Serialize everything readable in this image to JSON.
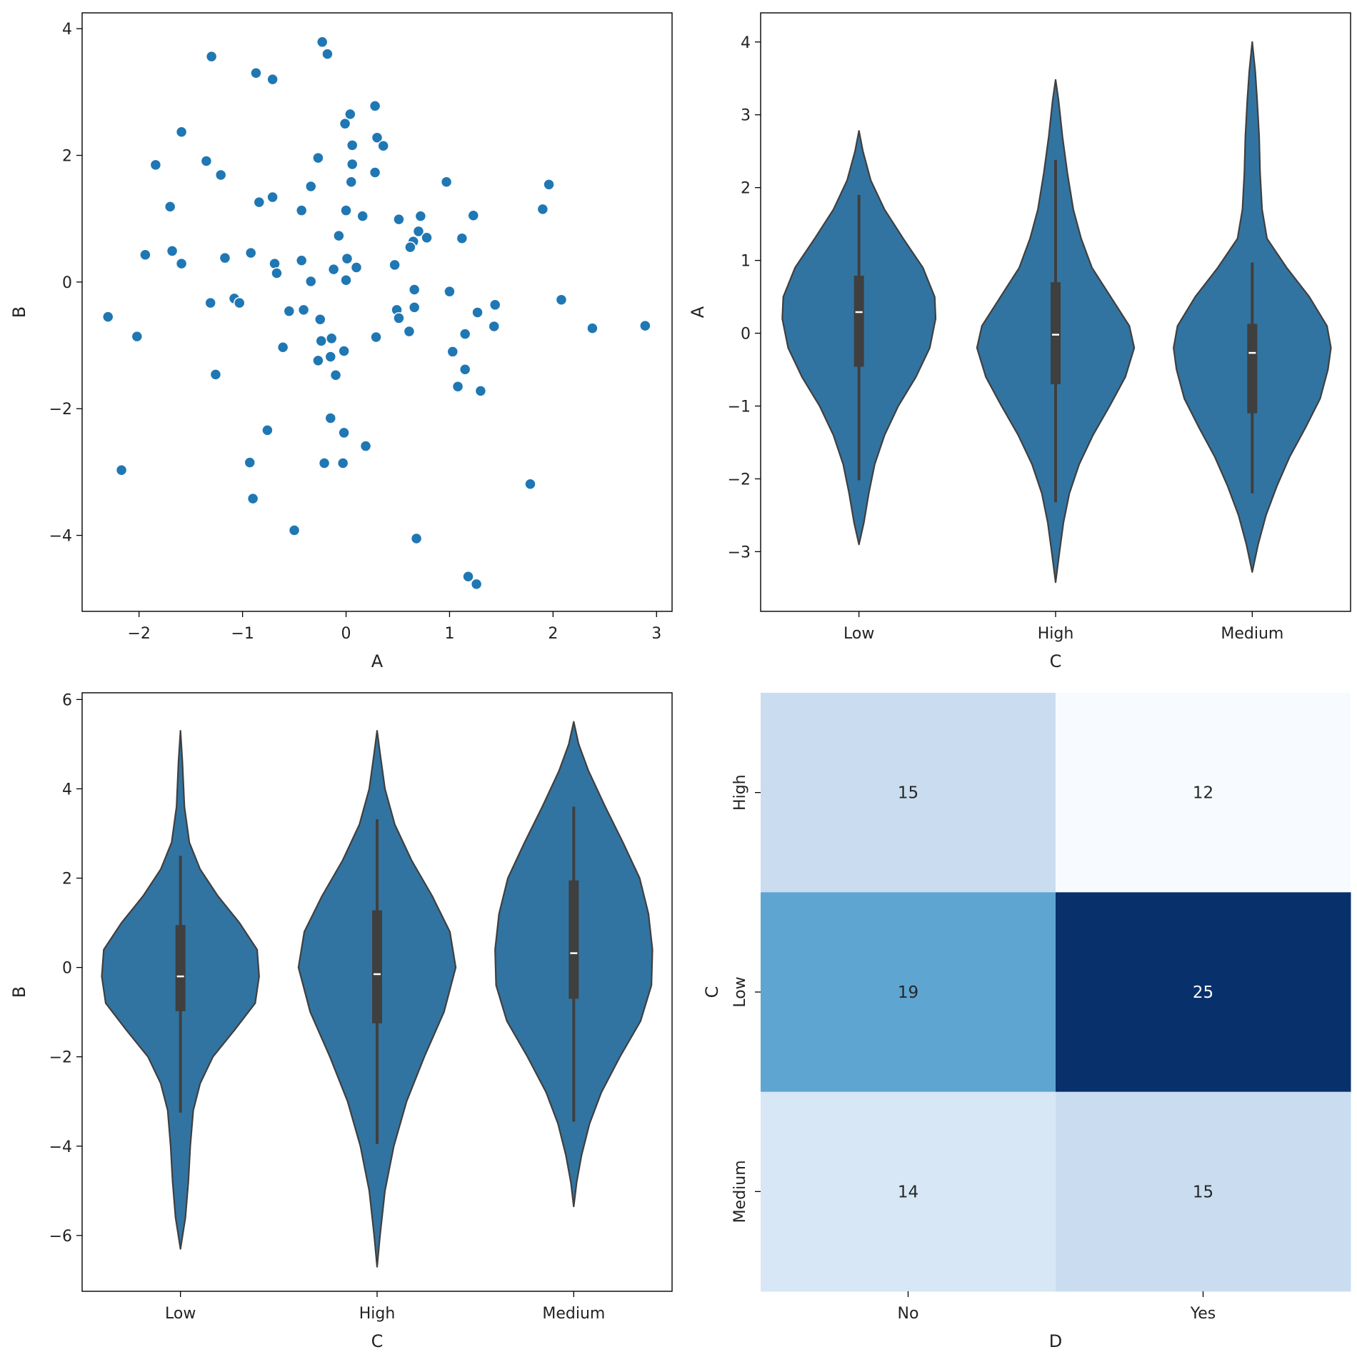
{
  "chart_data": [
    {
      "type": "scatter",
      "xlabel": "A",
      "ylabel": "B",
      "xlim": [
        -2.55,
        3.15
      ],
      "ylim": [
        -5.2,
        4.25
      ],
      "xticks": [
        "−2",
        "−1",
        "0",
        "1",
        "2",
        "3"
      ],
      "yticks": [
        "−4",
        "−2",
        "0",
        "2",
        "4"
      ],
      "color": "#1f77b4",
      "points": [
        [
          -0.23,
          3.79
        ],
        [
          -0.18,
          3.6
        ],
        [
          -1.3,
          3.56
        ],
        [
          -0.87,
          3.3
        ],
        [
          -0.71,
          3.2
        ],
        [
          0.28,
          2.78
        ],
        [
          0.04,
          2.65
        ],
        [
          -0.01,
          2.5
        ],
        [
          -1.59,
          2.37
        ],
        [
          0.3,
          2.28
        ],
        [
          0.06,
          2.16
        ],
        [
          0.36,
          2.15
        ],
        [
          -0.27,
          1.96
        ],
        [
          -1.35,
          1.91
        ],
        [
          -1.84,
          1.85
        ],
        [
          0.06,
          1.86
        ],
        [
          -1.21,
          1.69
        ],
        [
          0.28,
          1.73
        ],
        [
          0.97,
          1.58
        ],
        [
          0.05,
          1.58
        ],
        [
          1.96,
          1.54
        ],
        [
          -0.34,
          1.51
        ],
        [
          -0.71,
          1.34
        ],
        [
          -0.84,
          1.26
        ],
        [
          -1.7,
          1.19
        ],
        [
          1.9,
          1.15
        ],
        [
          -0.43,
          1.13
        ],
        [
          0.0,
          1.13
        ],
        [
          0.72,
          1.04
        ],
        [
          0.16,
          1.04
        ],
        [
          1.23,
          1.05
        ],
        [
          0.51,
          0.99
        ],
        [
          0.7,
          0.8
        ],
        [
          -0.07,
          0.73
        ],
        [
          0.78,
          0.7
        ],
        [
          1.12,
          0.69
        ],
        [
          0.65,
          0.64
        ],
        [
          0.62,
          0.55
        ],
        [
          -1.68,
          0.49
        ],
        [
          -0.92,
          0.46
        ],
        [
          -1.94,
          0.43
        ],
        [
          -1.17,
          0.38
        ],
        [
          0.01,
          0.37
        ],
        [
          -0.43,
          0.34
        ],
        [
          -0.69,
          0.29
        ],
        [
          -1.59,
          0.29
        ],
        [
          0.47,
          0.27
        ],
        [
          0.1,
          0.23
        ],
        [
          -0.12,
          0.2
        ],
        [
          -0.67,
          0.14
        ],
        [
          0.0,
          0.03
        ],
        [
          -0.34,
          0.01
        ],
        [
          0.66,
          -0.12
        ],
        [
          1.0,
          -0.15
        ],
        [
          2.08,
          -0.28
        ],
        [
          -1.08,
          -0.26
        ],
        [
          -1.03,
          -0.33
        ],
        [
          -1.31,
          -0.33
        ],
        [
          1.44,
          -0.36
        ],
        [
          0.66,
          -0.4
        ],
        [
          -0.41,
          -0.44
        ],
        [
          0.49,
          -0.44
        ],
        [
          -0.55,
          -0.46
        ],
        [
          1.27,
          -0.48
        ],
        [
          -2.3,
          -0.55
        ],
        [
          0.51,
          -0.57
        ],
        [
          -0.25,
          -0.59
        ],
        [
          2.89,
          -0.69
        ],
        [
          1.43,
          -0.7
        ],
        [
          2.38,
          -0.73
        ],
        [
          0.61,
          -0.78
        ],
        [
          1.15,
          -0.82
        ],
        [
          -2.02,
          -0.86
        ],
        [
          -0.14,
          -0.89
        ],
        [
          -0.24,
          -0.93
        ],
        [
          0.29,
          -0.87
        ],
        [
          -0.61,
          -1.03
        ],
        [
          -0.02,
          -1.09
        ],
        [
          1.03,
          -1.1
        ],
        [
          -0.15,
          -1.18
        ],
        [
          -0.27,
          -1.24
        ],
        [
          1.15,
          -1.38
        ],
        [
          -1.26,
          -1.46
        ],
        [
          -0.1,
          -1.47
        ],
        [
          1.08,
          -1.65
        ],
        [
          1.3,
          -1.72
        ],
        [
          -0.15,
          -2.15
        ],
        [
          -0.76,
          -2.34
        ],
        [
          -0.02,
          -2.38
        ],
        [
          0.19,
          -2.59
        ],
        [
          -0.93,
          -2.85
        ],
        [
          -0.21,
          -2.86
        ],
        [
          -0.03,
          -2.86
        ],
        [
          -2.17,
          -2.97
        ],
        [
          1.78,
          -3.19
        ],
        [
          -0.9,
          -3.42
        ],
        [
          -0.5,
          -3.92
        ],
        [
          0.68,
          -4.05
        ],
        [
          1.18,
          -4.65
        ],
        [
          1.26,
          -4.77
        ]
      ]
    },
    {
      "type": "violin",
      "xlabel": "C",
      "ylabel": "A",
      "ylim": [
        -3.82,
        4.4
      ],
      "yticks": [
        "−3",
        "−2",
        "−1",
        "0",
        "1",
        "2",
        "3",
        "4"
      ],
      "categories": [
        "Low",
        "High",
        "Medium"
      ],
      "color": "#3274a1",
      "violins": [
        {
          "category": "Low",
          "profile": [
            [
              -2.9,
              0.0
            ],
            [
              -2.6,
              0.05
            ],
            [
              -2.2,
              0.1
            ],
            [
              -1.8,
              0.16
            ],
            [
              -1.4,
              0.26
            ],
            [
              -1.0,
              0.4
            ],
            [
              -0.6,
              0.58
            ],
            [
              -0.2,
              0.72
            ],
            [
              0.2,
              0.78
            ],
            [
              0.5,
              0.77
            ],
            [
              0.9,
              0.65
            ],
            [
              1.3,
              0.45
            ],
            [
              1.7,
              0.26
            ],
            [
              2.1,
              0.12
            ],
            [
              2.5,
              0.04
            ],
            [
              2.78,
              0.0
            ]
          ],
          "median": 0.29,
          "q1": -0.46,
          "q3": 0.79,
          "whisker_low": -2.02,
          "whisker_high": 1.9
        },
        {
          "category": "High",
          "profile": [
            [
              -3.42,
              0.0
            ],
            [
              -3.0,
              0.04
            ],
            [
              -2.6,
              0.08
            ],
            [
              -2.2,
              0.14
            ],
            [
              -1.8,
              0.24
            ],
            [
              -1.4,
              0.38
            ],
            [
              -1.0,
              0.55
            ],
            [
              -0.6,
              0.71
            ],
            [
              -0.2,
              0.8
            ],
            [
              0.1,
              0.75
            ],
            [
              0.5,
              0.56
            ],
            [
              0.9,
              0.37
            ],
            [
              1.3,
              0.26
            ],
            [
              1.7,
              0.18
            ],
            [
              2.2,
              0.12
            ],
            [
              2.7,
              0.07
            ],
            [
              3.2,
              0.03
            ],
            [
              3.48,
              0.0
            ]
          ],
          "median": -0.02,
          "q1": -0.7,
          "q3": 0.7,
          "whisker_low": -2.32,
          "whisker_high": 2.38
        },
        {
          "category": "Medium",
          "profile": [
            [
              -3.28,
              0.0
            ],
            [
              -2.9,
              0.06
            ],
            [
              -2.5,
              0.14
            ],
            [
              -2.1,
              0.25
            ],
            [
              -1.7,
              0.38
            ],
            [
              -1.3,
              0.54
            ],
            [
              -0.9,
              0.69
            ],
            [
              -0.5,
              0.77
            ],
            [
              -0.2,
              0.8
            ],
            [
              0.1,
              0.76
            ],
            [
              0.5,
              0.58
            ],
            [
              0.9,
              0.35
            ],
            [
              1.3,
              0.15
            ],
            [
              1.7,
              0.1
            ],
            [
              2.2,
              0.08
            ],
            [
              2.7,
              0.07
            ],
            [
              3.2,
              0.05
            ],
            [
              3.6,
              0.03
            ],
            [
              4.0,
              0.0
            ]
          ],
          "median": -0.27,
          "q1": -1.1,
          "q3": 0.13,
          "whisker_low": -2.2,
          "whisker_high": 0.97
        }
      ]
    },
    {
      "type": "violin",
      "xlabel": "C",
      "ylabel": "B",
      "ylim": [
        -7.25,
        6.15
      ],
      "yticks": [
        "−6",
        "−4",
        "−2",
        "0",
        "2",
        "4",
        "6"
      ],
      "categories": [
        "Low",
        "High",
        "Medium"
      ],
      "color": "#3274a1",
      "violins": [
        {
          "category": "Low",
          "profile": [
            [
              -6.3,
              0.0
            ],
            [
              -5.6,
              0.05
            ],
            [
              -4.8,
              0.08
            ],
            [
              -4.0,
              0.1
            ],
            [
              -3.2,
              0.13
            ],
            [
              -2.6,
              0.2
            ],
            [
              -2.0,
              0.33
            ],
            [
              -1.4,
              0.55
            ],
            [
              -0.8,
              0.76
            ],
            [
              -0.2,
              0.8
            ],
            [
              0.4,
              0.78
            ],
            [
              1.0,
              0.6
            ],
            [
              1.6,
              0.38
            ],
            [
              2.2,
              0.2
            ],
            [
              2.8,
              0.09
            ],
            [
              3.6,
              0.04
            ],
            [
              4.6,
              0.02
            ],
            [
              5.3,
              0.0
            ]
          ],
          "median": -0.2,
          "q1": -0.98,
          "q3": 0.95,
          "whisker_low": -3.25,
          "whisker_high": 2.5
        },
        {
          "category": "High",
          "profile": [
            [
              -6.7,
              0.0
            ],
            [
              -6.0,
              0.03
            ],
            [
              -5.0,
              0.08
            ],
            [
              -4.0,
              0.17
            ],
            [
              -3.0,
              0.3
            ],
            [
              -2.0,
              0.48
            ],
            [
              -1.0,
              0.68
            ],
            [
              0.0,
              0.8
            ],
            [
              0.8,
              0.74
            ],
            [
              1.6,
              0.56
            ],
            [
              2.4,
              0.35
            ],
            [
              3.2,
              0.18
            ],
            [
              4.0,
              0.08
            ],
            [
              4.8,
              0.03
            ],
            [
              5.3,
              0.0
            ]
          ],
          "median": -0.15,
          "q1": -1.25,
          "q3": 1.28,
          "whisker_low": -3.95,
          "whisker_high": 3.32
        },
        {
          "category": "Medium",
          "profile": [
            [
              -5.35,
              0.0
            ],
            [
              -4.8,
              0.03
            ],
            [
              -4.2,
              0.08
            ],
            [
              -3.5,
              0.16
            ],
            [
              -2.8,
              0.28
            ],
            [
              -2.0,
              0.47
            ],
            [
              -1.2,
              0.68
            ],
            [
              -0.4,
              0.79
            ],
            [
              0.4,
              0.8
            ],
            [
              1.2,
              0.76
            ],
            [
              2.0,
              0.67
            ],
            [
              2.8,
              0.5
            ],
            [
              3.6,
              0.32
            ],
            [
              4.4,
              0.15
            ],
            [
              5.0,
              0.05
            ],
            [
              5.5,
              0.0
            ]
          ],
          "median": 0.32,
          "q1": -0.7,
          "q3": 1.95,
          "whisker_low": -3.45,
          "whisker_high": 3.6
        }
      ]
    },
    {
      "type": "heatmap",
      "xlabel": "D",
      "ylabel": "C",
      "x_categories": [
        "No",
        "Yes"
      ],
      "y_categories": [
        "High",
        "Low",
        "Medium"
      ],
      "values": [
        [
          15,
          12
        ],
        [
          19,
          25
        ],
        [
          14,
          15
        ]
      ],
      "vmin": 12,
      "vmax": 25,
      "colormap": "Blues"
    }
  ]
}
